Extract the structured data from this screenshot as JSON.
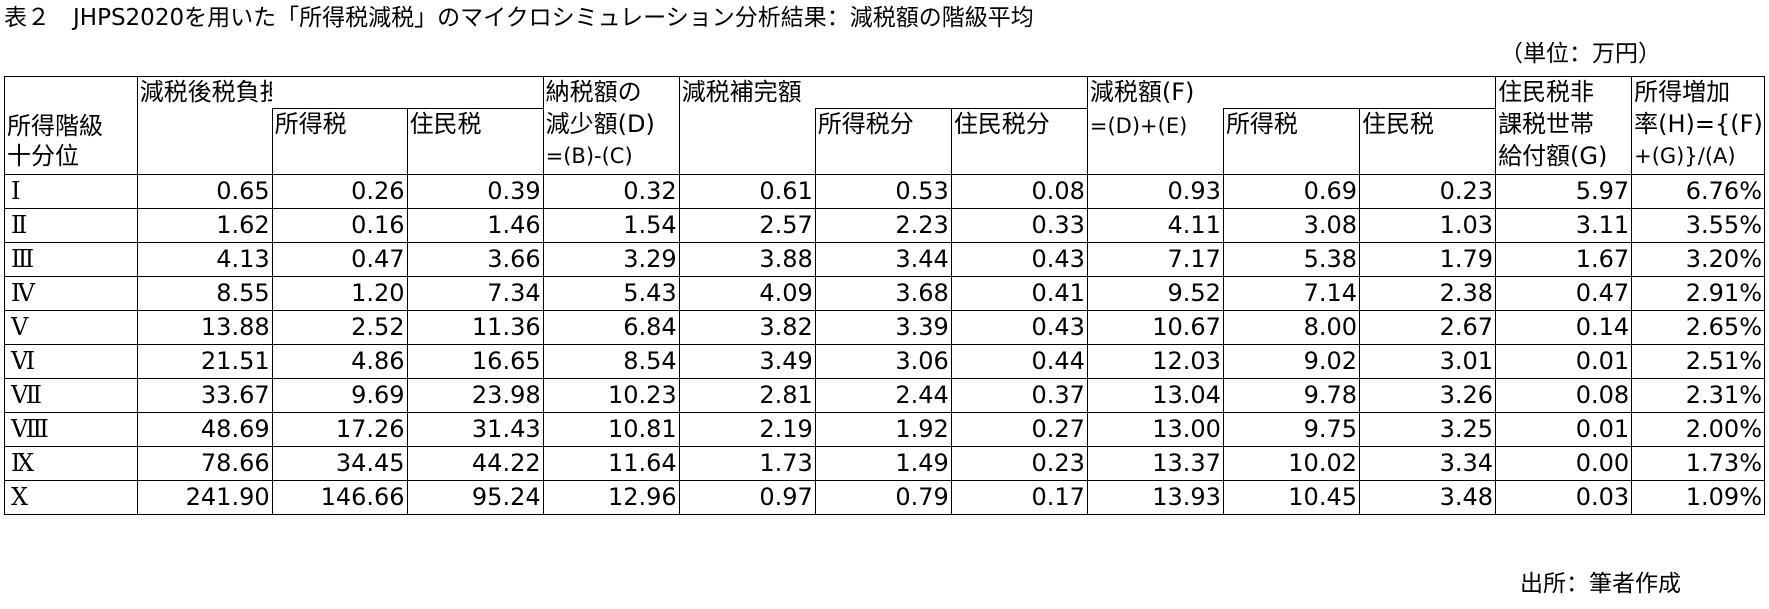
{
  "title": "表２　JHPS2020を用いた「所得税減税」のマイクロシミュレーション分析結果：減税額の階級平均",
  "unit": "（単位：万円）",
  "source": "出所：筆者作成",
  "headers": {
    "decile_line1": "所得階級",
    "decile_line2": "十分位",
    "c_group": "減税後税負担額(C)",
    "c_income_tax": "所得税",
    "c_resident_tax": "住民税",
    "d_line1": "納税額の",
    "d_line2": "減少額(D)",
    "d_line3": "=(B)-(C)",
    "e_group": "減税補完額（E)",
    "e_income_tax": "所得税分",
    "e_resident_tax": "住民税分",
    "f_group": "減税額(F)",
    "f_formula": "=(D)+(E)",
    "f_income_tax": "所得税",
    "f_resident_tax": "住民税",
    "g_line1": "住民税非",
    "g_line2": "課税世帯",
    "g_line3": "給付額(G)",
    "h_line1": "所得増加",
    "h_line2": "率(H)={(F)",
    "h_line3": "+(G)}/(A)"
  },
  "rows": [
    {
      "decile": "Ⅰ",
      "c": "0.65",
      "c_income": "0.26",
      "c_resident": "0.39",
      "d": "0.32",
      "e": "0.61",
      "e_income": "0.53",
      "e_resident": "0.08",
      "f": "0.93",
      "f_income": "0.69",
      "f_resident": "0.23",
      "g": "5.97",
      "h": "6.76%"
    },
    {
      "decile": "Ⅱ",
      "c": "1.62",
      "c_income": "0.16",
      "c_resident": "1.46",
      "d": "1.54",
      "e": "2.57",
      "e_income": "2.23",
      "e_resident": "0.33",
      "f": "4.11",
      "f_income": "3.08",
      "f_resident": "1.03",
      "g": "3.11",
      "h": "3.55%"
    },
    {
      "decile": "Ⅲ",
      "c": "4.13",
      "c_income": "0.47",
      "c_resident": "3.66",
      "d": "3.29",
      "e": "3.88",
      "e_income": "3.44",
      "e_resident": "0.43",
      "f": "7.17",
      "f_income": "5.38",
      "f_resident": "1.79",
      "g": "1.67",
      "h": "3.20%"
    },
    {
      "decile": "Ⅳ",
      "c": "8.55",
      "c_income": "1.20",
      "c_resident": "7.34",
      "d": "5.43",
      "e": "4.09",
      "e_income": "3.68",
      "e_resident": "0.41",
      "f": "9.52",
      "f_income": "7.14",
      "f_resident": "2.38",
      "g": "0.47",
      "h": "2.91%"
    },
    {
      "decile": "Ⅴ",
      "c": "13.88",
      "c_income": "2.52",
      "c_resident": "11.36",
      "d": "6.84",
      "e": "3.82",
      "e_income": "3.39",
      "e_resident": "0.43",
      "f": "10.67",
      "f_income": "8.00",
      "f_resident": "2.67",
      "g": "0.14",
      "h": "2.65%"
    },
    {
      "decile": "Ⅵ",
      "c": "21.51",
      "c_income": "4.86",
      "c_resident": "16.65",
      "d": "8.54",
      "e": "3.49",
      "e_income": "3.06",
      "e_resident": "0.44",
      "f": "12.03",
      "f_income": "9.02",
      "f_resident": "3.01",
      "g": "0.01",
      "h": "2.51%"
    },
    {
      "decile": "Ⅶ",
      "c": "33.67",
      "c_income": "9.69",
      "c_resident": "23.98",
      "d": "10.23",
      "e": "2.81",
      "e_income": "2.44",
      "e_resident": "0.37",
      "f": "13.04",
      "f_income": "9.78",
      "f_resident": "3.26",
      "g": "0.08",
      "h": "2.31%"
    },
    {
      "decile": "Ⅷ",
      "c": "48.69",
      "c_income": "17.26",
      "c_resident": "31.43",
      "d": "10.81",
      "e": "2.19",
      "e_income": "1.92",
      "e_resident": "0.27",
      "f": "13.00",
      "f_income": "9.75",
      "f_resident": "3.25",
      "g": "0.01",
      "h": "2.00%"
    },
    {
      "decile": "Ⅸ",
      "c": "78.66",
      "c_income": "34.45",
      "c_resident": "44.22",
      "d": "11.64",
      "e": "1.73",
      "e_income": "1.49",
      "e_resident": "0.23",
      "f": "13.37",
      "f_income": "10.02",
      "f_resident": "3.34",
      "g": "0.00",
      "h": "1.73%"
    },
    {
      "decile": "Ⅹ",
      "c": "241.90",
      "c_income": "146.66",
      "c_resident": "95.24",
      "d": "12.96",
      "e": "0.97",
      "e_income": "0.79",
      "e_resident": "0.17",
      "f": "13.93",
      "f_income": "10.45",
      "f_resident": "3.48",
      "g": "0.03",
      "h": "1.09%"
    }
  ]
}
